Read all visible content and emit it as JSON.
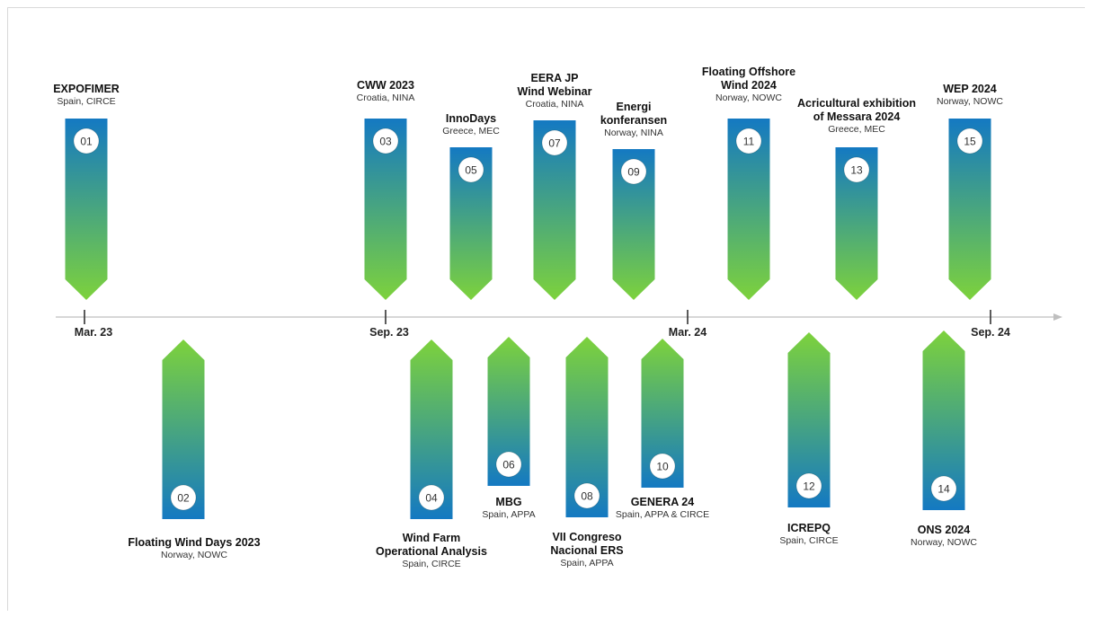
{
  "axis": {
    "ticks": [
      {
        "label": "Mar. 23"
      },
      {
        "label": "Sep. 23"
      },
      {
        "label": "Mar. 24"
      },
      {
        "label": "Sep. 24"
      }
    ]
  },
  "colors": {
    "arrow_top": "#1479c2",
    "arrow_bottom": "#7dd23c",
    "axis_line": "#bfbfbf",
    "tick": "#333333"
  },
  "events": [
    {
      "number": "01",
      "title": "EXPOFIMER",
      "location": "Spain, CIRCE",
      "side": "above"
    },
    {
      "number": "02",
      "title": "Floating Wind Days 2023",
      "location": "Norway, NOWC",
      "side": "below"
    },
    {
      "number": "03",
      "title": "CWW 2023",
      "location": "Croatia, NINA",
      "side": "above"
    },
    {
      "number": "04",
      "title": "Wind Farm\nOperational Analysis",
      "location": "Spain, CIRCE",
      "side": "below"
    },
    {
      "number": "05",
      "title": "InnoDays",
      "location": "Greece, MEC",
      "side": "above"
    },
    {
      "number": "06",
      "title": "MBG",
      "location": "Spain, APPA",
      "side": "below"
    },
    {
      "number": "07",
      "title": "EERA JP\nWind Webinar",
      "location": "Croatia, NINA",
      "side": "above"
    },
    {
      "number": "08",
      "title": "VII Congreso\nNacional ERS",
      "location": "Spain, APPA",
      "side": "below"
    },
    {
      "number": "09",
      "title": "Energi\nkonferansen",
      "location": "Norway, NINA",
      "side": "above"
    },
    {
      "number": "10",
      "title": "GENERA 24",
      "location": "Spain, APPA & CIRCE",
      "side": "below"
    },
    {
      "number": "11",
      "title": "Floating Offshore\nWind 2024",
      "location": "Norway, NOWC",
      "side": "above"
    },
    {
      "number": "12",
      "title": "ICREPQ",
      "location": "Spain, CIRCE",
      "side": "below"
    },
    {
      "number": "13",
      "title": "Acricultural exhibition\nof Messara 2024",
      "location": "Greece, MEC",
      "side": "above"
    },
    {
      "number": "14",
      "title": "ONS 2024",
      "location": "Norway, NOWC",
      "side": "below"
    },
    {
      "number": "15",
      "title": "WEP 2024",
      "location": "Norway, NOWC",
      "side": "above"
    }
  ]
}
